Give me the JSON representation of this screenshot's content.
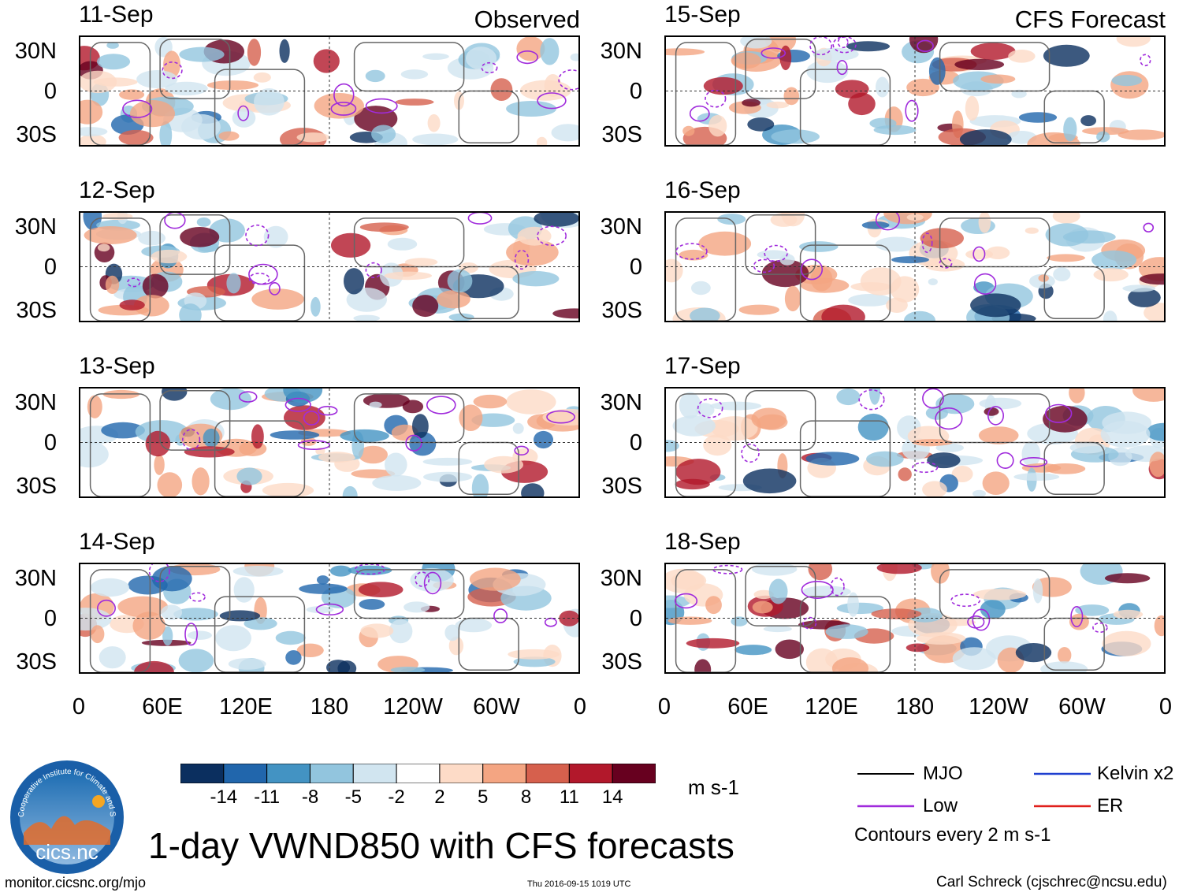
{
  "panels": {
    "observed": [
      {
        "date": "11-Sep",
        "source_label": "Observed"
      },
      {
        "date": "12-Sep"
      },
      {
        "date": "13-Sep"
      },
      {
        "date": "14-Sep"
      }
    ],
    "forecast": [
      {
        "date": "15-Sep",
        "source_label": "CFS Forecast"
      },
      {
        "date": "16-Sep"
      },
      {
        "date": "17-Sep"
      },
      {
        "date": "18-Sep"
      }
    ]
  },
  "chart_data": {
    "type": "heatmap",
    "title": "1-day VWND850 with CFS forecasts",
    "variable": "VWND850",
    "y_ticks": [
      "30N",
      "0",
      "30S"
    ],
    "x_ticks": [
      "0",
      "60E",
      "120E",
      "180",
      "120W",
      "60W",
      "0"
    ],
    "lon_range": [
      0,
      360
    ],
    "lat_range": [
      -40,
      40
    ],
    "colorbar": {
      "levels": [
        "-14",
        "-11",
        "-8",
        "-5",
        "-2",
        "2",
        "5",
        "8",
        "11",
        "14"
      ],
      "colors": [
        "#0b2f5f",
        "#2166ac",
        "#4393c3",
        "#92c5de",
        "#d1e5f0",
        "#ffffff",
        "#fddbc7",
        "#f4a582",
        "#d6604d",
        "#b2182b",
        "#67001f"
      ],
      "units": "m s-1"
    },
    "legend": [
      {
        "label": "MJO",
        "color": "#000000"
      },
      {
        "label": "Kelvin x2",
        "color": "#1f3fcf"
      },
      {
        "label": "Low",
        "color": "#a02bdc"
      },
      {
        "label": "ER",
        "color": "#e0201c"
      }
    ],
    "contour_note": "Contours every 2 m s-1"
  },
  "logo": {
    "text": "cics.nc",
    "ring_text": "Cooperative Institute for Climate and Satellites"
  },
  "footer": {
    "left": "monitor.cicsnc.org/mjo",
    "center": "Thu 2016-09-15 1019 UTC",
    "right": "Carl Schreck (cjschrec@ncsu.edu)"
  }
}
